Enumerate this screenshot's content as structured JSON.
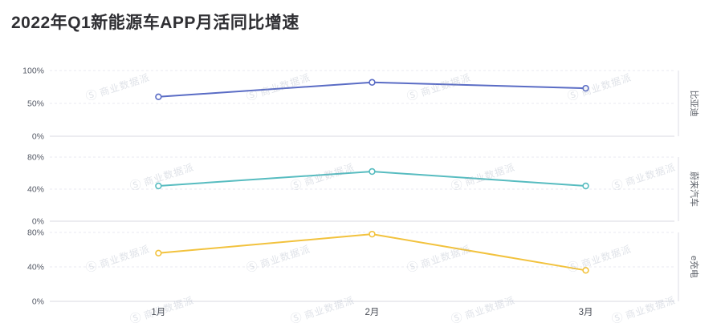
{
  "page": {
    "title": "2022年Q1新能源车APP月活同比增速"
  },
  "watermark": {
    "logo": "Ⓢ",
    "text": "商业数据派"
  },
  "chart_data": {
    "type": "line",
    "title": "2022年Q1新能源车APP月活同比增速",
    "categories": [
      "1月",
      "2月",
      "3月"
    ],
    "facet_layout": "stacked-panels-shared-x",
    "legend_position": "right-rotated-facet-labels",
    "grid": true,
    "xlabel": "",
    "ylabel": "",
    "series": [
      {
        "name": "比亚迪",
        "color": "#5a6cc5",
        "values": [
          60,
          82,
          73
        ],
        "ylim": [
          0,
          100
        ],
        "yticks": [
          "0%",
          "50%",
          "100%"
        ]
      },
      {
        "name": "蔚来汽车",
        "color": "#57bcc0",
        "values": [
          44,
          62,
          44
        ],
        "ylim": [
          0,
          80
        ],
        "yticks": [
          "0%",
          "40%",
          "80%"
        ]
      },
      {
        "name": "e充电",
        "color": "#f2c23d",
        "values": [
          56,
          78,
          36
        ],
        "ylim": [
          0,
          80
        ],
        "yticks": [
          "0%",
          "40%",
          "80%"
        ]
      }
    ]
  }
}
